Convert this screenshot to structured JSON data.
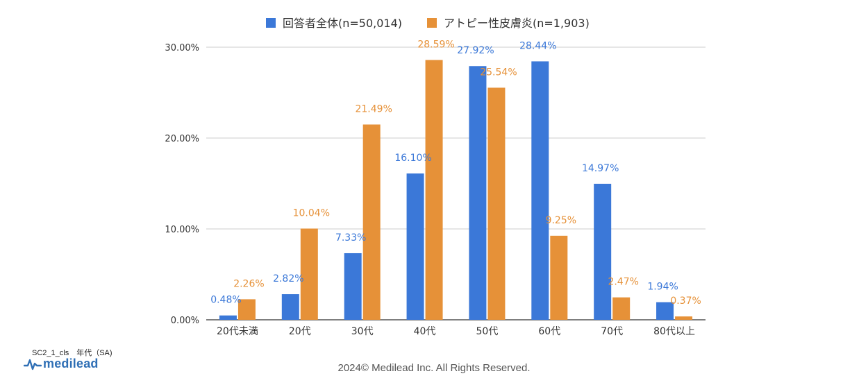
{
  "chart_data": {
    "type": "bar",
    "categories": [
      "20代未満",
      "20代",
      "30代",
      "40代",
      "50代",
      "60代",
      "70代",
      "80代以上"
    ],
    "series": [
      {
        "name": "回答者全体(n=50,014)",
        "color": "#3b78d8",
        "values": [
          0.48,
          2.82,
          7.33,
          16.1,
          27.92,
          28.44,
          14.97,
          1.94
        ],
        "labels": [
          "0.48%",
          "2.82%",
          "7.33%",
          "16.10%",
          "27.92%",
          "28.44%",
          "14.97%",
          "1.94%"
        ]
      },
      {
        "name": "アトピー性皮膚炎(n=1,903)",
        "color": "#e69138",
        "values": [
          2.26,
          10.04,
          21.49,
          28.59,
          25.54,
          9.25,
          2.47,
          0.37
        ],
        "labels": [
          "2.26%",
          "10.04%",
          "21.49%",
          "28.59%",
          "25.54%",
          "9.25%",
          "2.47%",
          "0.37%"
        ]
      }
    ],
    "y_ticks": [
      0,
      10,
      20,
      30
    ],
    "y_tick_labels": [
      "0.00%",
      "10.00%",
      "20.00%",
      "30.00%"
    ],
    "ylim": [
      0,
      30
    ],
    "legend_position": "top-center",
    "grid": true
  },
  "footer": {
    "code": "SC2_1_cls　年代（SA)",
    "brand": "medilead",
    "copyright": "2024© Medilead Inc. All Rights Reserved."
  }
}
